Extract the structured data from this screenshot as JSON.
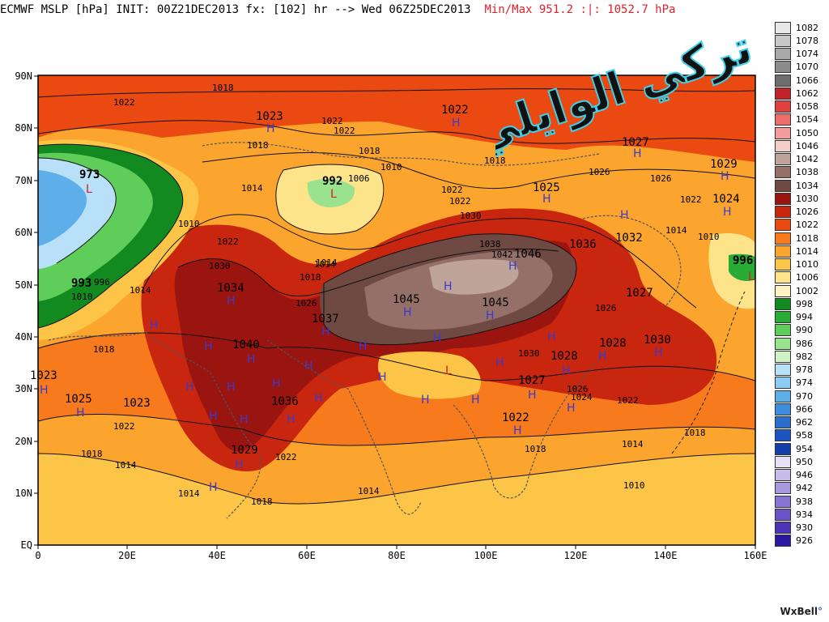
{
  "header": {
    "title": "ECMWF MSLP [hPa] INIT: 00Z21DEC2013 fx: [102] hr --> Wed 06Z25DEC2013",
    "minmax": "Min/Max 951.2 :|: 1052.7 hPa"
  },
  "map": {
    "y_axis_labels": [
      "90N",
      "80N",
      "70N",
      "60N",
      "50N",
      "40N",
      "30N",
      "20N",
      "10N",
      "EQ"
    ],
    "x_axis_labels": [
      "0",
      "20E",
      "40E",
      "60E",
      "80E",
      "100E",
      "120E",
      "140E",
      "160E"
    ],
    "pressure_labels": [
      "1018",
      "1022",
      "1023",
      "1022",
      "1022",
      "1022",
      "1018",
      "1018",
      "1010",
      "1014",
      "1006",
      "1018",
      "1022",
      "1022",
      "1027",
      "1029",
      "1026",
      "1026",
      "1024",
      "1025",
      "1032",
      "1022",
      "1010",
      "1014",
      "1030",
      "1036",
      "1038",
      "1042",
      "1046",
      "1045",
      "1045",
      "1037",
      "1034",
      "1030",
      "1030",
      "1040",
      "1036",
      "1026",
      "1018",
      "1014",
      "1023",
      "1025",
      "1023",
      "1022",
      "1018",
      "1014",
      "1029",
      "1022",
      "1027",
      "1026",
      "1022",
      "1018",
      "1014",
      "1010",
      "1014",
      "1018",
      "1030",
      "1028",
      "1028",
      "1027",
      "1026",
      "1024",
      "1022",
      "1018",
      "1014",
      "1010",
      "1022",
      "1018",
      "1014",
      "973",
      "996",
      "993",
      "992",
      "996",
      "1014",
      "1010"
    ],
    "highs_lows_symbols": [
      "H",
      "L"
    ],
    "overlay_text": "تركي الوايلي",
    "credit": "WxBell"
  },
  "legend": {
    "levels": [
      "1082",
      "1078",
      "1074",
      "1070",
      "1066",
      "1062",
      "1058",
      "1054",
      "1050",
      "1046",
      "1042",
      "1038",
      "1034",
      "1030",
      "1026",
      "1022",
      "1018",
      "1014",
      "1010",
      "1006",
      "1002",
      "998",
      "994",
      "990",
      "986",
      "982",
      "978",
      "974",
      "970",
      "966",
      "962",
      "958",
      "954",
      "950",
      "946",
      "942",
      "938",
      "934",
      "930",
      "926"
    ],
    "colors": [
      "#e8e8e8",
      "#c8c8c8",
      "#a8a8a8",
      "#8c8c8c",
      "#6e6e6e",
      "#c0242a",
      "#e04040",
      "#ef6c6c",
      "#f49c9c",
      "#f4cfc8",
      "#bfa49a",
      "#947068",
      "#6e4a42",
      "#9a1410",
      "#c8260e",
      "#ea4a12",
      "#f77a1c",
      "#fba42e",
      "#fdc548",
      "#fde38a",
      "#fff3c4",
      "#138a20",
      "#2aab36",
      "#5fcd5a",
      "#9be28e",
      "#cdf2c4",
      "#b8e0f8",
      "#8ecbf3",
      "#5eaee9",
      "#3d8ee0",
      "#2a6fd0",
      "#1a55c0",
      "#1040a8",
      "#e6e0f6",
      "#c8bcec",
      "#a898e0",
      "#8874d4",
      "#6a54c8",
      "#4c34b8",
      "#2c18a0"
    ]
  }
}
